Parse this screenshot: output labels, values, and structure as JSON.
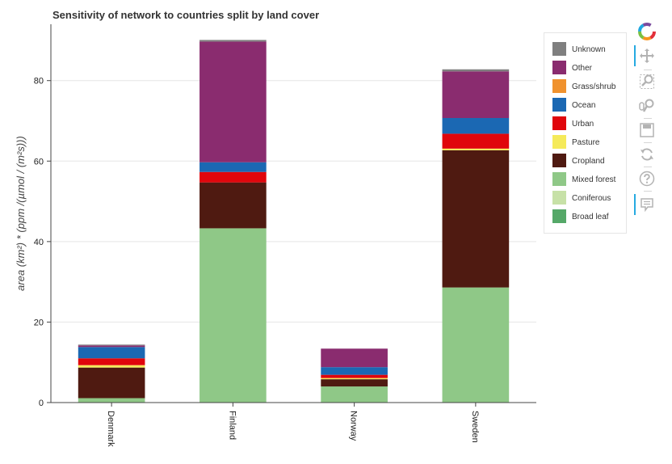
{
  "chart_data": {
    "type": "bar",
    "stacked": true,
    "title": "Sensitivity of network to countries split by land cover",
    "ylabel": "area (km²) * (ppm /(µmol / (m²s)))",
    "xlabel": "",
    "ylim": [
      0,
      94
    ],
    "yticks": [
      0,
      20,
      40,
      60,
      80
    ],
    "grid": "horizontal",
    "legend_position": "top-right",
    "categories": [
      "Denmark",
      "Finland",
      "Norway",
      "Sweden"
    ],
    "series": [
      {
        "name": "Broad leaf",
        "color": "#55a868",
        "values": [
          0.0,
          0.0,
          0.0,
          0.0
        ]
      },
      {
        "name": "Coniferous",
        "color": "#c7e1a7",
        "values": [
          0.0,
          0.0,
          0.0,
          0.0
        ]
      },
      {
        "name": "Mixed forest",
        "color": "#8fc887",
        "values": [
          1.1,
          43.3,
          4.0,
          28.6
        ]
      },
      {
        "name": "Cropland",
        "color": "#4f1a11",
        "values": [
          7.6,
          11.4,
          1.8,
          34.1
        ]
      },
      {
        "name": "Pasture",
        "color": "#f5ea5a",
        "values": [
          0.6,
          0.0,
          0.3,
          0.4
        ]
      },
      {
        "name": "Urban",
        "color": "#e0060c",
        "values": [
          1.7,
          2.6,
          0.8,
          3.7
        ]
      },
      {
        "name": "Ocean",
        "color": "#1b68b3",
        "values": [
          2.8,
          2.4,
          1.9,
          3.9
        ]
      },
      {
        "name": "Grass/shrub",
        "color": "#f0922e",
        "values": [
          0.0,
          0.0,
          0.0,
          0.0
        ]
      },
      {
        "name": "Other",
        "color": "#8a2c6f",
        "values": [
          0.4,
          30.0,
          4.6,
          11.6
        ]
      },
      {
        "name": "Unknown",
        "color": "#7f7f7f",
        "values": [
          0.2,
          0.4,
          0.0,
          0.5
        ]
      }
    ]
  },
  "toolbar": {
    "tools": [
      {
        "name": "bokeh-logo",
        "label": "Bokeh"
      },
      {
        "name": "pan-tool",
        "label": "Pan"
      },
      {
        "name": "box-zoom-tool",
        "label": "Box Zoom"
      },
      {
        "name": "wheel-zoom-tool",
        "label": "Wheel Zoom"
      },
      {
        "name": "save-tool",
        "label": "Save"
      },
      {
        "name": "reset-tool",
        "label": "Reset"
      },
      {
        "name": "help-tool",
        "label": "Help"
      },
      {
        "name": "hover-tool",
        "label": "Hover"
      }
    ]
  }
}
